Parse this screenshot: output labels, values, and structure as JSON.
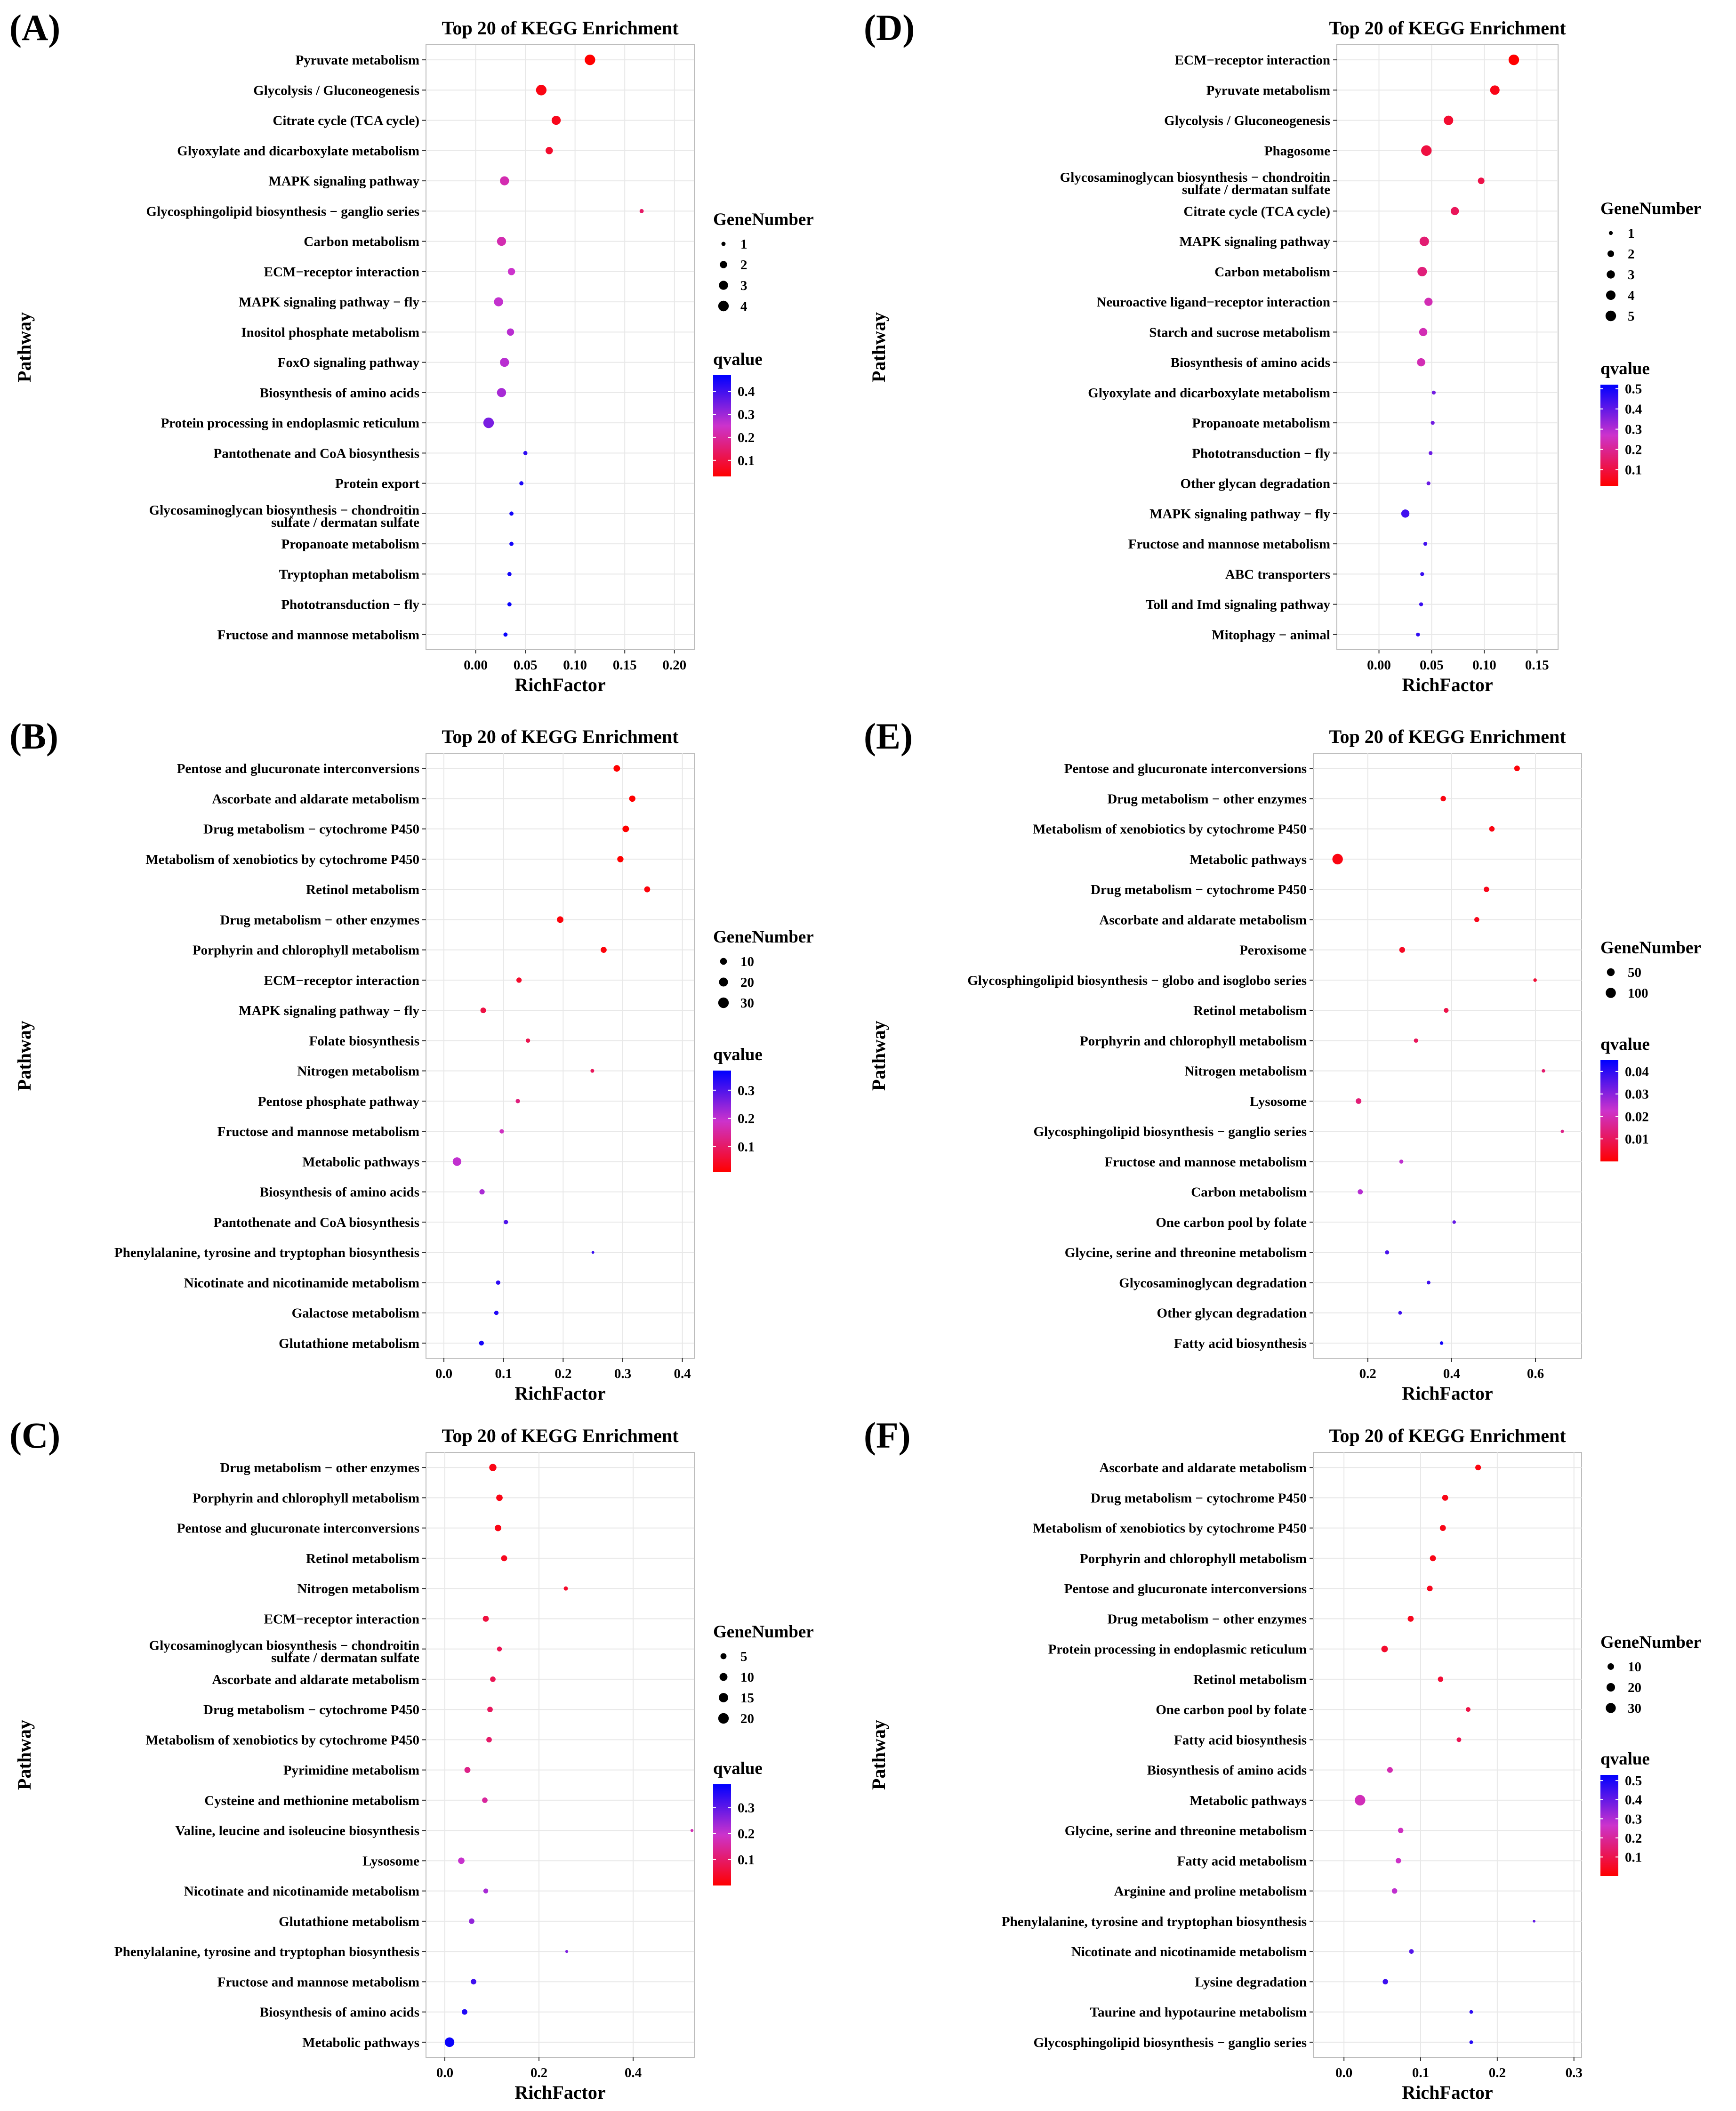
{
  "colors": {
    "low_q": "#ff0000",
    "mid_q": "#cc33cc",
    "high_q": "#0000ff"
  },
  "chart_data": [
    {
      "panel": "(A)",
      "type": "scatter",
      "title": "Top 20 of KEGG Enrichment",
      "xlabel": "RichFactor",
      "ylabel": "Pathway",
      "xlim": [
        -0.05,
        0.22
      ],
      "xticks": [
        0.0,
        0.05,
        0.1,
        0.15,
        0.2
      ],
      "xtick_labels": [
        "0.00",
        "0.05",
        "0.10",
        "0.15",
        "0.20"
      ],
      "size_legend_title": "GeneNumber",
      "size_legend": [
        1,
        2,
        3,
        4
      ],
      "size_range": [
        1,
        4
      ],
      "color_legend_title": "qvalue",
      "color_legend_ticks": [
        "0.4",
        "0.3",
        "0.2",
        "0.1"
      ],
      "qvalue_range": [
        0.03,
        0.47
      ],
      "qvalue_tick_values": [
        0.4,
        0.3,
        0.2,
        0.1
      ],
      "pathways": [
        "Pyruvate metabolism",
        "Glycolysis / Gluconeogenesis",
        "Citrate cycle (TCA cycle)",
        "Glyoxylate and dicarboxylate metabolism",
        "MAPK signaling pathway",
        "Glycosphingolipid biosynthesis − ganglio series",
        "Carbon metabolism",
        "ECM−receptor interaction",
        "MAPK signaling pathway − fly",
        "Inositol phosphate metabolism",
        "FoxO signaling pathway",
        "Biosynthesis of amino acids",
        "Protein processing in endoplasmic reticulum",
        "Pantothenate and CoA biosynthesis",
        "Protein export",
        "Glycosaminoglycan biosynthesis − chondroitin sulfate / dermatan sulfate",
        "Propanoate metabolism",
        "Tryptophan metabolism",
        "Phototransduction − fly",
        "Fructose and mannose metabolism"
      ],
      "x": [
        0.115,
        0.066,
        0.081,
        0.074,
        0.029,
        0.167,
        0.026,
        0.036,
        0.023,
        0.035,
        0.029,
        0.026,
        0.013,
        0.05,
        0.046,
        0.036,
        0.036,
        0.034,
        0.034,
        0.03
      ],
      "gene_number": [
        4,
        4,
        3,
        2,
        3,
        1,
        3,
        2,
        3,
        2,
        3,
        3,
        4,
        1,
        1,
        1,
        1,
        1,
        1,
        1
      ],
      "qvalue": [
        0.03,
        0.05,
        0.06,
        0.08,
        0.22,
        0.14,
        0.22,
        0.25,
        0.26,
        0.27,
        0.27,
        0.29,
        0.34,
        0.42,
        0.44,
        0.45,
        0.45,
        0.45,
        0.46,
        0.46
      ]
    },
    {
      "panel": "(D)",
      "type": "scatter",
      "title": "Top 20 of KEGG Enrichment",
      "xlabel": "RichFactor",
      "ylabel": "Pathway",
      "xlim": [
        -0.04,
        0.17
      ],
      "xticks": [
        0.0,
        0.05,
        0.1,
        0.15
      ],
      "xtick_labels": [
        "0.00",
        "0.05",
        "0.10",
        "0.15"
      ],
      "size_legend_title": "GeneNumber",
      "size_legend": [
        1,
        2,
        3,
        4,
        5
      ],
      "size_range": [
        1,
        5
      ],
      "color_legend_title": "qvalue",
      "color_legend_ticks": [
        "0.5",
        "0.4",
        "0.3",
        "0.2",
        "0.1"
      ],
      "qvalue_range": [
        0.02,
        0.52
      ],
      "qvalue_tick_values": [
        0.5,
        0.4,
        0.3,
        0.2,
        0.1
      ],
      "pathways": [
        "ECM−receptor interaction",
        "Pyruvate metabolism",
        "Glycolysis / Gluconeogenesis",
        "Phagosome",
        "Glycosaminoglycan biosynthesis − chondroitin sulfate / dermatan sulfate",
        "Citrate cycle (TCA cycle)",
        "MAPK signaling pathway",
        "Carbon metabolism",
        "Neuroactive ligand−receptor interaction",
        "Starch and sucrose metabolism",
        "Biosynthesis of amino acids",
        "Glyoxylate and dicarboxylate metabolism",
        "Propanoate metabolism",
        "Phototransduction − fly",
        "Other glycan degradation",
        "MAPK signaling pathway − fly",
        "Fructose and mannose metabolism",
        "ABC transporters",
        "Toll and Imd signaling pathway",
        "Mitophagy − animal"
      ],
      "x": [
        0.128,
        0.11,
        0.066,
        0.045,
        0.097,
        0.072,
        0.043,
        0.041,
        0.047,
        0.042,
        0.04,
        0.052,
        0.051,
        0.049,
        0.047,
        0.025,
        0.044,
        0.041,
        0.04,
        0.037
      ],
      "gene_number": [
        5,
        4,
        4,
        5,
        2,
        3,
        4,
        4,
        3,
        3,
        3,
        1,
        1,
        1,
        1,
        3,
        1,
        1,
        1,
        1
      ],
      "qvalue": [
        0.02,
        0.05,
        0.08,
        0.1,
        0.11,
        0.13,
        0.16,
        0.17,
        0.24,
        0.24,
        0.24,
        0.38,
        0.38,
        0.39,
        0.39,
        0.44,
        0.44,
        0.45,
        0.45,
        0.46
      ]
    },
    {
      "panel": "(B)",
      "type": "scatter",
      "title": "Top 20 of KEGG Enrichment",
      "xlabel": "RichFactor",
      "ylabel": "Pathway",
      "xlim": [
        -0.03,
        0.42
      ],
      "xticks": [
        0.0,
        0.1,
        0.2,
        0.3,
        0.4
      ],
      "xtick_labels": [
        "0.0",
        "0.1",
        "0.2",
        "0.3",
        "0.4"
      ],
      "size_legend_title": "GeneNumber",
      "size_legend": [
        10,
        20,
        30
      ],
      "size_range": [
        1,
        30
      ],
      "color_legend_title": "qvalue",
      "color_legend_ticks": [
        "0.3",
        "0.2",
        "0.1"
      ],
      "qvalue_range": [
        0.01,
        0.37
      ],
      "qvalue_tick_values": [
        0.3,
        0.2,
        0.1
      ],
      "pathways": [
        "Pentose and glucuronate interconversions",
        "Ascorbate and aldarate metabolism",
        "Drug metabolism − cytochrome P450",
        "Metabolism of xenobiotics by cytochrome P450",
        "Retinol metabolism",
        "Drug metabolism − other enzymes",
        "Porphyrin and chlorophyll metabolism",
        "ECM−receptor interaction",
        "MAPK signaling pathway − fly",
        "Folate biosynthesis",
        "Nitrogen metabolism",
        "Pentose phosphate pathway",
        "Fructose and mannose metabolism",
        "Metabolic pathways",
        "Biosynthesis of amino acids",
        "Pantothenate and CoA biosynthesis",
        "Phenylalanine, tyrosine and tryptophan biosynthesis",
        "Nicotinate and nicotinamide metabolism",
        "Galactose metabolism",
        "Glutathione metabolism"
      ],
      "x": [
        0.29,
        0.316,
        0.305,
        0.296,
        0.341,
        0.195,
        0.268,
        0.126,
        0.066,
        0.141,
        0.249,
        0.124,
        0.097,
        0.022,
        0.064,
        0.104,
        0.25,
        0.091,
        0.088,
        0.063
      ],
      "gene_number": [
        9,
        8,
        9,
        8,
        7,
        9,
        7,
        5,
        6,
        3,
        2,
        3,
        3,
        18,
        5,
        3,
        1,
        3,
        3,
        4
      ],
      "qvalue": [
        0.01,
        0.01,
        0.01,
        0.01,
        0.02,
        0.02,
        0.02,
        0.05,
        0.07,
        0.08,
        0.09,
        0.12,
        0.18,
        0.2,
        0.22,
        0.3,
        0.32,
        0.33,
        0.34,
        0.35
      ]
    },
    {
      "panel": "(E)",
      "type": "scatter",
      "title": "Top 20 of KEGG Enrichment",
      "xlabel": "RichFactor",
      "ylabel": "Pathway",
      "xlim": [
        0.07,
        0.71
      ],
      "xticks": [
        0.2,
        0.4,
        0.6
      ],
      "xtick_labels": [
        "0.2",
        "0.4",
        "0.6"
      ],
      "size_legend_title": "GeneNumber",
      "size_legend": [
        50,
        100
      ],
      "size_range": [
        1,
        110
      ],
      "color_legend_title": "qvalue",
      "color_legend_ticks": [
        "0.04",
        "0.03",
        "0.02",
        "0.01"
      ],
      "qvalue_range": [
        0.0,
        0.045
      ],
      "qvalue_tick_values": [
        0.04,
        0.03,
        0.02,
        0.01
      ],
      "pathways": [
        "Pentose and glucuronate interconversions",
        "Drug metabolism − other enzymes",
        "Metabolism of xenobiotics by cytochrome P450",
        "Metabolic pathways",
        "Drug metabolism − cytochrome P450",
        "Ascorbate and aldarate metabolism",
        "Peroxisome",
        "Glycosphingolipid biosynthesis − globo and isoglobo series",
        "Retinol metabolism",
        "Porphyrin and chlorophyll metabolism",
        "Nitrogen metabolism",
        "Lysosome",
        "Glycosphingolipid biosynthesis − ganglio series",
        "Fructose and mannose metabolism",
        "Carbon metabolism",
        "One carbon pool by folate",
        "Glycine, serine and threonine metabolism",
        "Glycosaminoglycan degradation",
        "Other glycan degradation",
        "Fatty acid biosynthesis"
      ],
      "x": [
        0.556,
        0.38,
        0.496,
        0.128,
        0.483,
        0.46,
        0.282,
        0.599,
        0.387,
        0.315,
        0.619,
        0.178,
        0.664,
        0.28,
        0.182,
        0.406,
        0.246,
        0.345,
        0.277,
        0.376
      ],
      "gene_number": [
        20,
        18,
        18,
        110,
        18,
        14,
        22,
        4,
        12,
        9,
        4,
        20,
        3,
        7,
        15,
        4,
        7,
        5,
        5,
        4
      ],
      "qvalue": [
        0.001,
        0.002,
        0.002,
        0.002,
        0.003,
        0.003,
        0.004,
        0.006,
        0.008,
        0.01,
        0.012,
        0.013,
        0.015,
        0.024,
        0.025,
        0.034,
        0.037,
        0.038,
        0.038,
        0.043
      ]
    },
    {
      "panel": "(C)",
      "type": "scatter",
      "title": "Top 20 of KEGG Enrichment",
      "xlabel": "RichFactor",
      "ylabel": "Pathway",
      "xlim": [
        -0.04,
        0.53
      ],
      "xticks": [
        0.0,
        0.2,
        0.4
      ],
      "xtick_labels": [
        "0.0",
        "0.2",
        "0.4"
      ],
      "size_legend_title": "GeneNumber",
      "size_legend": [
        5,
        10,
        15,
        20
      ],
      "size_range": [
        1,
        20
      ],
      "color_legend_title": "qvalue",
      "color_legend_ticks": [
        "0.3",
        "0.2",
        "0.1"
      ],
      "qvalue_range": [
        0.0,
        0.39
      ],
      "qvalue_tick_values": [
        0.3,
        0.2,
        0.1
      ],
      "pathways": [
        "Drug metabolism − other enzymes",
        "Porphyrin and chlorophyll metabolism",
        "Pentose and glucuronate interconversions",
        "Retinol metabolism",
        "Nitrogen metabolism",
        "ECM−receptor interaction",
        "Glycosaminoglycan biosynthesis − chondroitin sulfate / dermatan sulfate",
        "Ascorbate and aldarate metabolism",
        "Drug metabolism − cytochrome P450",
        "Metabolism of xenobiotics by cytochrome P450",
        "Pyrimidine metabolism",
        "Cysteine and methionine metabolism",
        "Valine, leucine and isoleucine biosynthesis",
        "Lysosome",
        "Nicotinate and nicotinamide metabolism",
        "Glutathione metabolism",
        "Phenylalanine, tyrosine and tryptophan biosynthesis",
        "Fructose and mannose metabolism",
        "Biosynthesis of amino acids",
        "Metabolic pathways"
      ],
      "x": [
        0.102,
        0.116,
        0.113,
        0.126,
        0.257,
        0.087,
        0.116,
        0.102,
        0.096,
        0.094,
        0.048,
        0.085,
        0.525,
        0.035,
        0.087,
        0.057,
        0.259,
        0.061,
        0.042,
        0.01
      ],
      "gene_number": [
        8,
        6,
        6,
        5,
        2,
        5,
        3,
        4,
        4,
        4,
        5,
        4,
        1,
        6,
        3,
        4,
        1,
        4,
        4,
        16
      ],
      "qvalue": [
        0.02,
        0.02,
        0.02,
        0.03,
        0.04,
        0.06,
        0.08,
        0.08,
        0.09,
        0.1,
        0.13,
        0.15,
        0.17,
        0.2,
        0.23,
        0.25,
        0.27,
        0.33,
        0.36,
        0.38
      ]
    },
    {
      "panel": "(F)",
      "type": "scatter",
      "title": "Top 20 of KEGG Enrichment",
      "xlabel": "RichFactor",
      "ylabel": "Pathway",
      "xlim": [
        -0.04,
        0.31
      ],
      "xticks": [
        0.0,
        0.1,
        0.2,
        0.3
      ],
      "xtick_labels": [
        "0.0",
        "0.1",
        "0.2",
        "0.3"
      ],
      "size_legend_title": "GeneNumber",
      "size_legend": [
        10,
        20,
        30
      ],
      "size_range": [
        1,
        34
      ],
      "color_legend_title": "qvalue",
      "color_legend_ticks": [
        "0.5",
        "0.4",
        "0.3",
        "0.2",
        "0.1"
      ],
      "qvalue_range": [
        0.0,
        0.53
      ],
      "qvalue_tick_values": [
        0.5,
        0.4,
        0.3,
        0.2,
        0.1
      ],
      "pathways": [
        "Ascorbate and aldarate metabolism",
        "Drug metabolism − cytochrome P450",
        "Metabolism of xenobiotics by cytochrome P450",
        "Porphyrin and chlorophyll metabolism",
        "Pentose and glucuronate interconversions",
        "Drug metabolism − other enzymes",
        "Protein processing in endoplasmic reticulum",
        "Retinol metabolism",
        "One carbon pool by folate",
        "Fatty acid biosynthesis",
        "Biosynthesis of amino acids",
        "Metabolic pathways",
        "Glycine, serine and threonine metabolism",
        "Fatty acid metabolism",
        "Arginine and proline metabolism",
        "Phenylalanine, tyrosine and tryptophan biosynthesis",
        "Nicotinate and nicotinamide metabolism",
        "Lysine degradation",
        "Taurine and hypotaurine metabolism",
        "Glycosphingolipid biosynthesis − ganglio series"
      ],
      "x": [
        0.175,
        0.132,
        0.129,
        0.116,
        0.112,
        0.087,
        0.053,
        0.126,
        0.162,
        0.15,
        0.06,
        0.021,
        0.074,
        0.071,
        0.066,
        0.248,
        0.088,
        0.054,
        0.166,
        0.166
      ],
      "gene_number": [
        7,
        8,
        8,
        8,
        7,
        8,
        10,
        6,
        4,
        4,
        7,
        34,
        6,
        6,
        6,
        1,
        4,
        6,
        2,
        2
      ],
      "qvalue": [
        0.02,
        0.03,
        0.03,
        0.03,
        0.04,
        0.04,
        0.06,
        0.07,
        0.09,
        0.11,
        0.23,
        0.24,
        0.25,
        0.26,
        0.28,
        0.4,
        0.42,
        0.45,
        0.47,
        0.48
      ]
    }
  ]
}
